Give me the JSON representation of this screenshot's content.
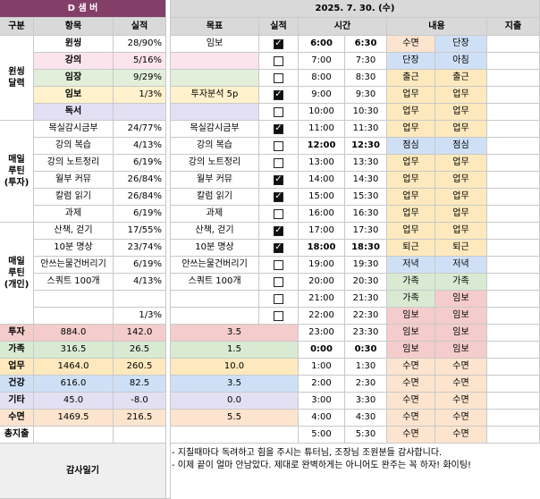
{
  "header": {
    "tracker_title": "D 샘 버",
    "date": "2025. 7. 30. (수)",
    "col_category": "구분",
    "col_item": "항목",
    "col_result": "실적",
    "col_goal": "목표",
    "col_done": "실적",
    "col_time": "시간",
    "col_content": "내용",
    "col_expense": "지출"
  },
  "colors": {
    "title_bg": "#833f68",
    "header_bg": "#d9d9d9",
    "sleep": "#fde4cf",
    "work": "#fde9bd",
    "study": "#cfe0f6",
    "commute": "#fde9bd",
    "meal": "#cfe0f6",
    "dinner": "#cfe0f6",
    "family": "#d9ead3",
    "dawn": "#f4cccc"
  },
  "categories": [
    {
      "name": "윈씽\n달력"
    },
    {
      "name": "매일\n루틴\n(투자)"
    },
    {
      "name": "매일\n루틴\n(개인)"
    }
  ],
  "tracker_rows": [
    {
      "item": "윈씽",
      "result": "28/90%",
      "goal": "임보",
      "checked": true
    },
    {
      "item": "강의",
      "result": "5/16%",
      "goal": "",
      "checked": false
    },
    {
      "item": "임장",
      "result": "9/29%",
      "goal": "",
      "checked": false
    },
    {
      "item": "임보",
      "result": "1/3%",
      "goal": "투자분석 5p",
      "checked": true
    },
    {
      "item": "독서",
      "result": "",
      "goal": "",
      "checked": false
    },
    {
      "item": "목실감시금부",
      "result": "24/77%",
      "goal": "목실감시금부",
      "checked": true
    },
    {
      "item": "강의 복습",
      "result": "4/13%",
      "goal": "강의 복습",
      "checked": false
    },
    {
      "item": "강의 노트정리",
      "result": "6/19%",
      "goal": "강의 노트정리",
      "checked": false
    },
    {
      "item": "월부 커뮤",
      "result": "26/84%",
      "goal": "월부 커뮤",
      "checked": true
    },
    {
      "item": "칼럼 읽기",
      "result": "26/84%",
      "goal": "칼럼 읽기",
      "checked": true
    },
    {
      "item": "과제",
      "result": "6/19%",
      "goal": "과제",
      "checked": false
    },
    {
      "item": "산책, 걷기",
      "result": "17/55%",
      "goal": "산책, 걷기",
      "checked": true
    },
    {
      "item": "10분 명상",
      "result": "23/74%",
      "goal": "10분 명상",
      "checked": true
    },
    {
      "item": "안쓰는물건버리기",
      "result": "6/19%",
      "goal": "안쓰는물건버리기",
      "checked": false
    },
    {
      "item": "스쿼트 100개",
      "result": "4/13%",
      "goal": "스쿼트 100개",
      "checked": false
    },
    {
      "item": "",
      "result": "",
      "goal": "",
      "checked": false
    },
    {
      "item": "",
      "result": "1/3%",
      "goal": "",
      "checked": false
    }
  ],
  "summary_rows": [
    {
      "label": "투자",
      "a": "884.0",
      "b": "142.0",
      "c": "3.5"
    },
    {
      "label": "가족",
      "a": "316.5",
      "b": "26.5",
      "c": "1.5"
    },
    {
      "label": "업무",
      "a": "1464.0",
      "b": "260.5",
      "c": "10.0"
    },
    {
      "label": "건강",
      "a": "616.0",
      "b": "82.5",
      "c": "3.5"
    },
    {
      "label": "기타",
      "a": "45.0",
      "b": "-8.0",
      "c": "0.0"
    },
    {
      "label": "수면",
      "a": "1469.5",
      "b": "216.5",
      "c": "5.5"
    },
    {
      "label": "총지출",
      "a": "",
      "b": "",
      "c": ""
    }
  ],
  "schedule": [
    {
      "start": "6:00",
      "end": "6:30",
      "plan": "수면",
      "actual": "단장",
      "bold": true
    },
    {
      "start": "7:00",
      "end": "7:30",
      "plan": "단장",
      "actual": "아침",
      "bold": false
    },
    {
      "start": "8:00",
      "end": "8:30",
      "plan": "출근",
      "actual": "출근",
      "bold": false
    },
    {
      "start": "9:00",
      "end": "9:30",
      "plan": "업무",
      "actual": "업무",
      "bold": false
    },
    {
      "start": "10:00",
      "end": "10:30",
      "plan": "업무",
      "actual": "업무",
      "bold": false
    },
    {
      "start": "11:00",
      "end": "11:30",
      "plan": "업무",
      "actual": "업무",
      "bold": false
    },
    {
      "start": "12:00",
      "end": "12:30",
      "plan": "점심",
      "actual": "점심",
      "bold": true
    },
    {
      "start": "13:00",
      "end": "13:30",
      "plan": "업무",
      "actual": "업무",
      "bold": false
    },
    {
      "start": "14:00",
      "end": "14:30",
      "plan": "업무",
      "actual": "업무",
      "bold": false
    },
    {
      "start": "15:00",
      "end": "15:30",
      "plan": "업무",
      "actual": "업무",
      "bold": false
    },
    {
      "start": "16:00",
      "end": "16:30",
      "plan": "업무",
      "actual": "업무",
      "bold": false
    },
    {
      "start": "17:00",
      "end": "17:30",
      "plan": "업무",
      "actual": "업무",
      "bold": false
    },
    {
      "start": "18:00",
      "end": "18:30",
      "plan": "퇴근",
      "actual": "퇴근",
      "bold": true
    },
    {
      "start": "19:00",
      "end": "19:30",
      "plan": "저녁",
      "actual": "저녁",
      "bold": false
    },
    {
      "start": "20:00",
      "end": "20:30",
      "plan": "가족",
      "actual": "가족",
      "bold": false
    },
    {
      "start": "21:00",
      "end": "21:30",
      "plan": "가족",
      "actual": "임보",
      "bold": false
    },
    {
      "start": "22:00",
      "end": "22:30",
      "plan": "임보",
      "actual": "임보",
      "bold": false
    },
    {
      "start": "23:00",
      "end": "23:30",
      "plan": "임보",
      "actual": "임보",
      "bold": false
    },
    {
      "start": "0:00",
      "end": "0:30",
      "plan": "임보",
      "actual": "임보",
      "bold": true
    },
    {
      "start": "1:00",
      "end": "1:30",
      "plan": "수면",
      "actual": "수면",
      "bold": false
    },
    {
      "start": "2:00",
      "end": "2:30",
      "plan": "수면",
      "actual": "수면",
      "bold": false
    },
    {
      "start": "3:00",
      "end": "3:30",
      "plan": "수면",
      "actual": "수면",
      "bold": false
    },
    {
      "start": "4:00",
      "end": "4:30",
      "plan": "수면",
      "actual": "수면",
      "bold": false
    },
    {
      "start": "5:00",
      "end": "5:30",
      "plan": "수면",
      "actual": "수면",
      "bold": false
    }
  ],
  "gratitude": {
    "label": "감사일기",
    "line1": "- 지칠때마다 독려하고 힘을 주시는 튜터님, 조장님 조원분들 감사합니다.",
    "line2": "- 이제 끝이 얼마 안남았다. 제대로 완벽하게는 아니어도 완주는 꼭 하자! 화이팅!"
  }
}
